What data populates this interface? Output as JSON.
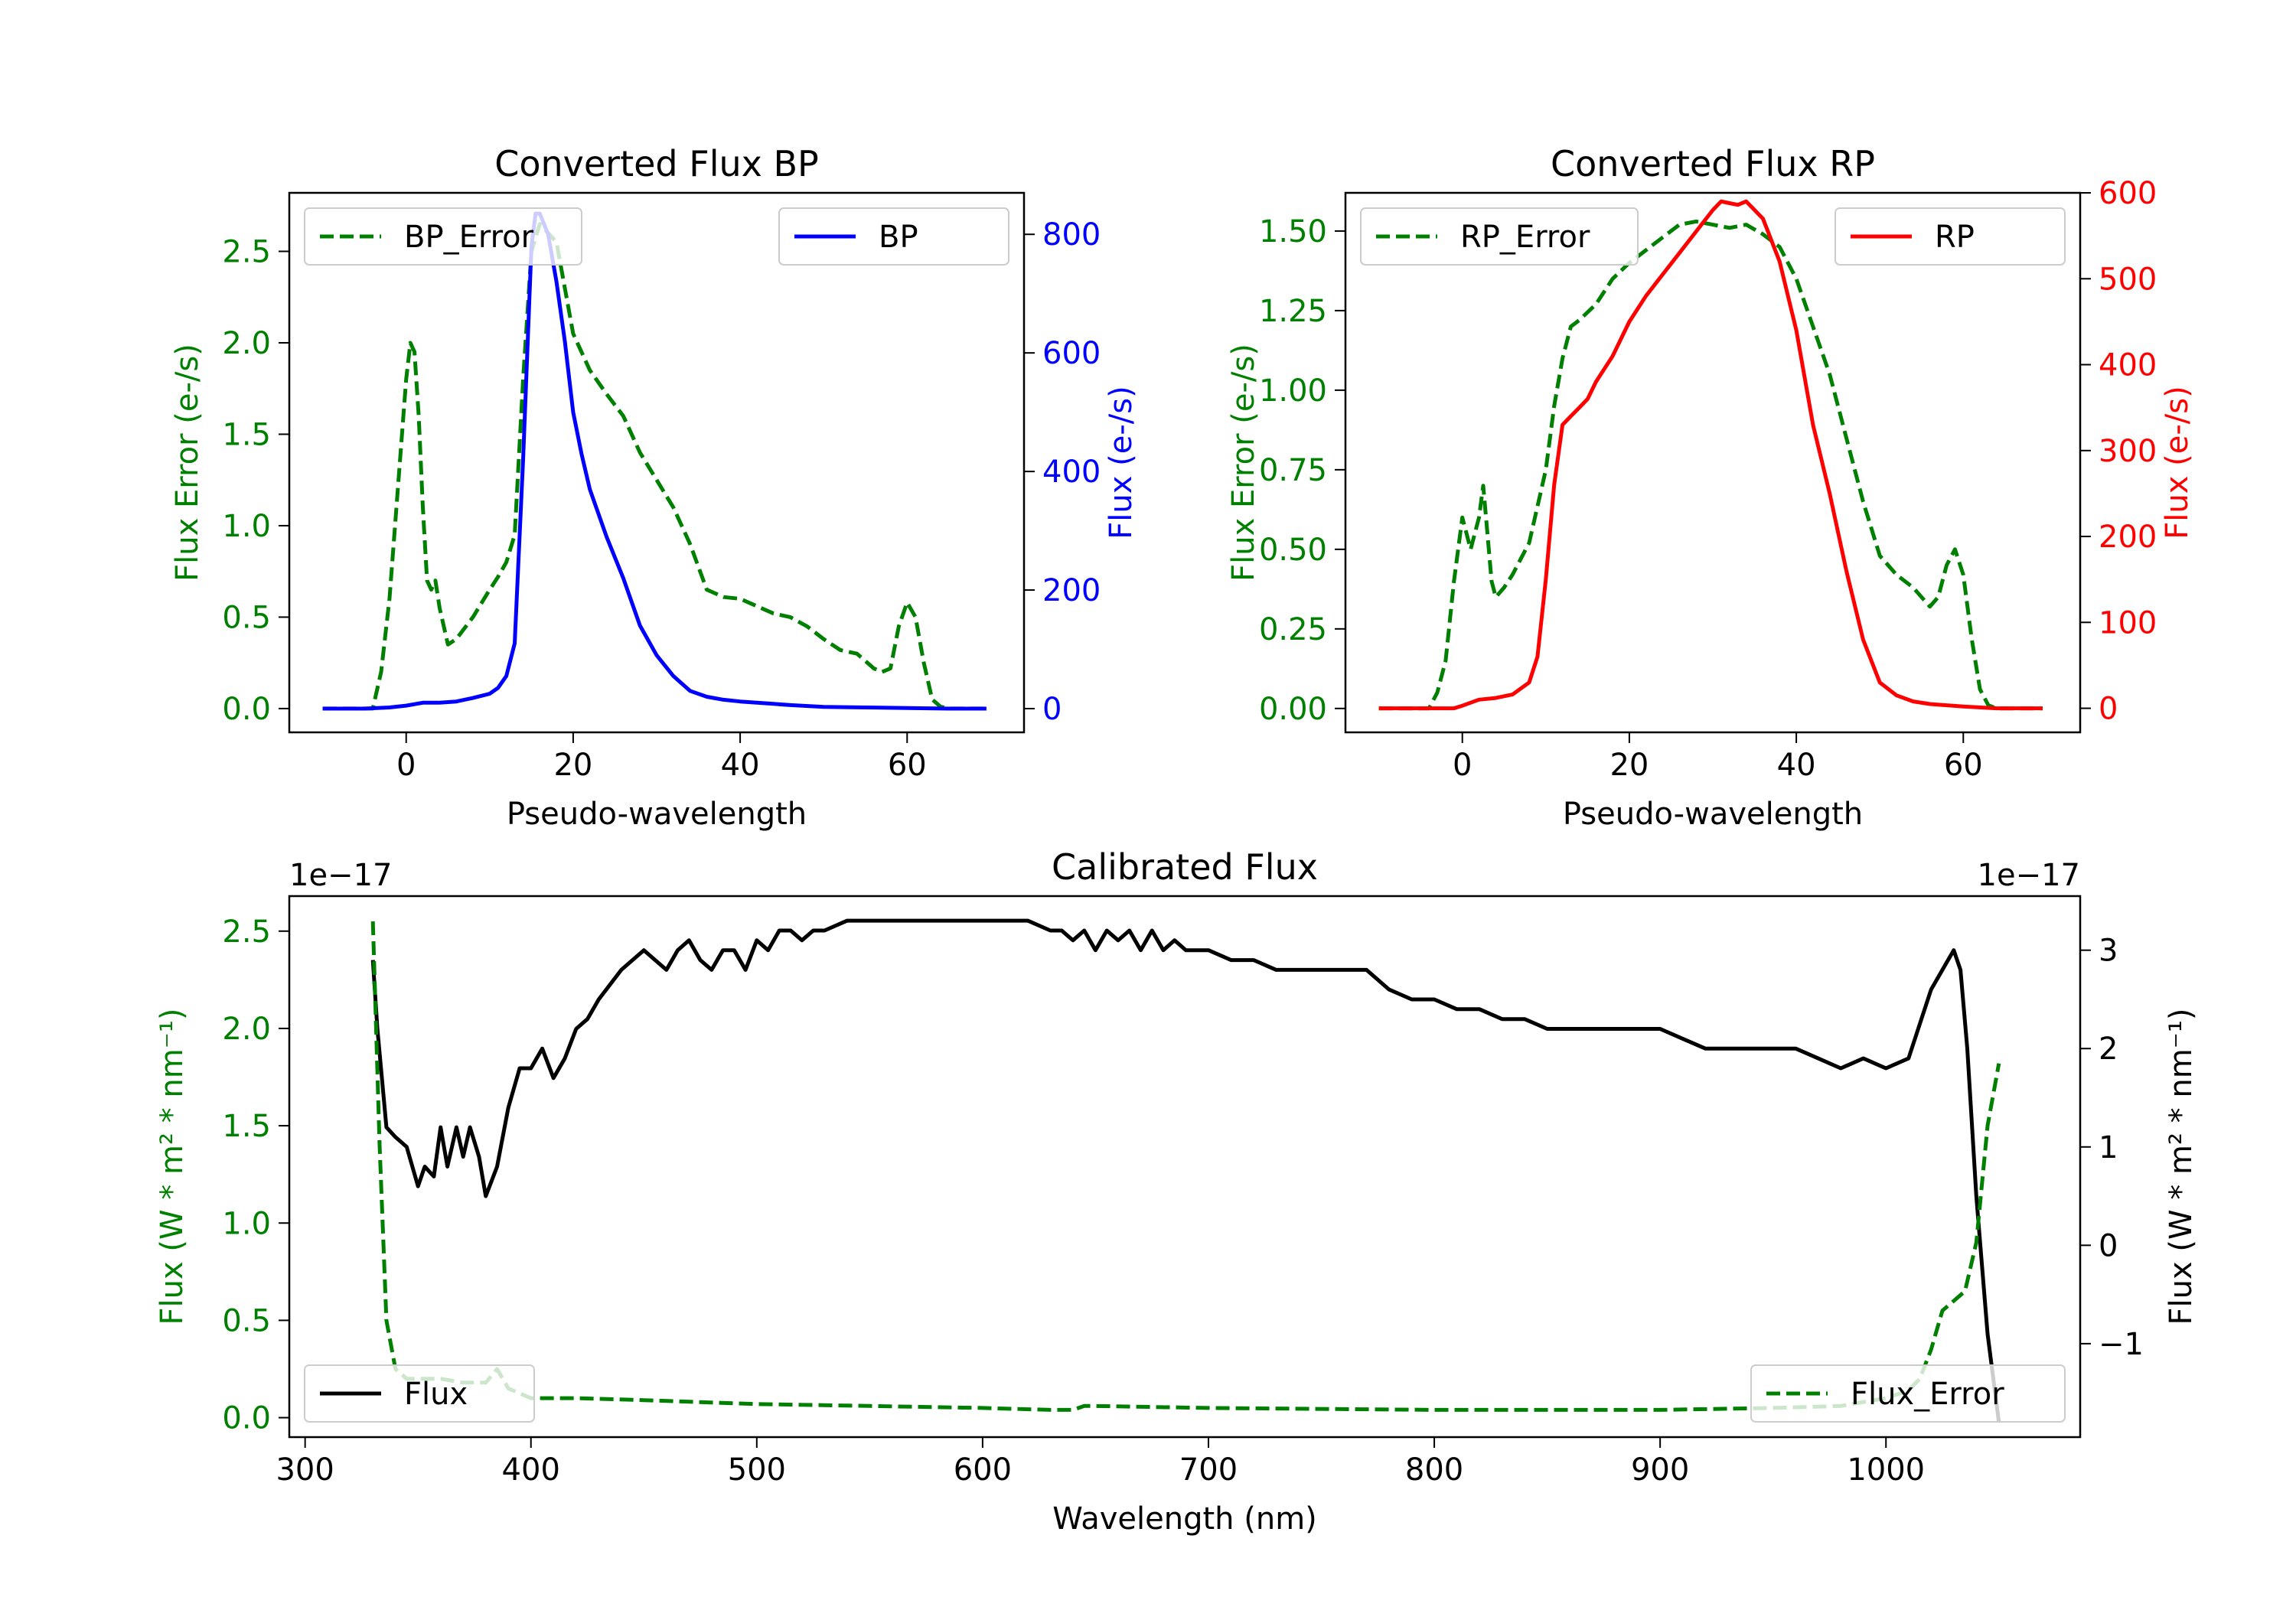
{
  "colors": {
    "bp_error": "#008000",
    "bp": "#0000ff",
    "rp_error": "#008000",
    "rp": "#ff0000",
    "flux": "#000000",
    "flux_error": "#008000",
    "axis": "#000000",
    "legend_border": "#cccccc"
  },
  "chart_data": [
    {
      "id": "bp",
      "type": "line",
      "title": "Converted Flux BP",
      "xlabel": "Pseudo-wavelength",
      "ylabel_left": "Flux Error (e-/s)",
      "ylabel_right": "Flux (e-/s)",
      "xlim": [
        -14,
        74
      ],
      "ylim_left": [
        -0.13,
        2.82
      ],
      "ylim_right": [
        -40,
        870
      ],
      "xticks": [
        0,
        20,
        40,
        60
      ],
      "yticks_left": [
        0.0,
        0.5,
        1.0,
        1.5,
        2.0,
        2.5
      ],
      "yticks_right": [
        0,
        200,
        400,
        600,
        800
      ],
      "xtick_labels": [
        "0",
        "20",
        "40",
        "60"
      ],
      "ytick_labels_left": [
        "0.0",
        "0.5",
        "1.0",
        "1.5",
        "2.0",
        "2.5"
      ],
      "ytick_labels_right": [
        "0",
        "200",
        "400",
        "600",
        "800"
      ],
      "legend_left": "BP_Error",
      "legend_right": "BP",
      "series": [
        {
          "name": "BP_Error",
          "axis": "left",
          "style": "dashed",
          "x": [
            -10,
            -4,
            -3,
            -2,
            -1,
            0,
            0.5,
            1,
            1.5,
            2,
            2.5,
            3,
            3.5,
            4,
            5,
            6,
            8,
            10,
            11,
            12,
            13,
            14,
            15,
            16,
            18,
            20,
            22,
            24,
            26,
            28,
            30,
            32,
            34,
            36,
            38,
            40,
            44,
            46,
            48,
            50,
            52,
            54,
            56,
            57,
            58,
            59,
            60,
            61,
            62,
            63,
            64,
            65,
            69.5
          ],
          "y": [
            0,
            0,
            0.2,
            0.6,
            1.2,
            1.8,
            2.0,
            1.95,
            1.6,
            1.1,
            0.7,
            0.65,
            0.7,
            0.55,
            0.35,
            0.38,
            0.5,
            0.65,
            0.72,
            0.8,
            0.95,
            1.8,
            2.5,
            2.65,
            2.55,
            2.05,
            1.85,
            1.72,
            1.6,
            1.4,
            1.25,
            1.1,
            0.9,
            0.65,
            0.61,
            0.6,
            0.52,
            0.5,
            0.45,
            0.38,
            0.32,
            0.3,
            0.22,
            0.2,
            0.22,
            0.45,
            0.58,
            0.5,
            0.25,
            0.05,
            0.01,
            0,
            0
          ]
        },
        {
          "name": "BP",
          "axis": "right",
          "style": "solid",
          "x": [
            -10,
            -5,
            -2,
            0,
            2,
            4,
            6,
            8,
            10,
            11,
            12,
            13,
            14,
            15,
            15.5,
            16,
            17,
            18,
            19,
            20,
            21,
            22,
            24,
            26,
            28,
            30,
            32,
            34,
            36,
            38,
            40,
            42,
            44,
            46,
            50,
            55,
            60,
            65,
            69.5
          ],
          "y": [
            0,
            0,
            2,
            5,
            10,
            10,
            12,
            18,
            25,
            35,
            55,
            110,
            420,
            780,
            835,
            835,
            800,
            720,
            620,
            500,
            430,
            370,
            290,
            220,
            140,
            90,
            55,
            30,
            20,
            15,
            12,
            10,
            8,
            6,
            3,
            2,
            1,
            0,
            0
          ]
        }
      ]
    },
    {
      "id": "rp",
      "type": "line",
      "title": "Converted Flux RP",
      "xlabel": "Pseudo-wavelength",
      "ylabel_left": "Flux Error (e-/s)",
      "ylabel_right": "Flux (e-/s)",
      "xlim": [
        -14,
        74
      ],
      "ylim_left": [
        -0.075,
        1.62
      ],
      "ylim_right": [
        -28,
        600
      ],
      "xticks": [
        0,
        20,
        40,
        60
      ],
      "yticks_left": [
        0.0,
        0.25,
        0.5,
        0.75,
        1.0,
        1.25,
        1.5
      ],
      "yticks_right": [
        0,
        100,
        200,
        300,
        400,
        500,
        600
      ],
      "xtick_labels": [
        "0",
        "20",
        "40",
        "60"
      ],
      "ytick_labels_left": [
        "0.00",
        "0.25",
        "0.50",
        "0.75",
        "1.00",
        "1.25",
        "1.50"
      ],
      "ytick_labels_right": [
        "0",
        "100",
        "200",
        "300",
        "400",
        "500",
        "600"
      ],
      "legend_left": "RP_Error",
      "legend_right": "RP",
      "series": [
        {
          "name": "RP_Error",
          "axis": "left",
          "style": "dashed",
          "x": [
            -10,
            -4,
            -3,
            -2,
            -1,
            0,
            1,
            2,
            2.5,
            3,
            3.5,
            4,
            5,
            6,
            8,
            10,
            11,
            12,
            13,
            14,
            16,
            18,
            20,
            22,
            24,
            26,
            28,
            30,
            32,
            34,
            36,
            38,
            40,
            42,
            44,
            46,
            48,
            50,
            52,
            54,
            56,
            57,
            58,
            59,
            60,
            61,
            62,
            63,
            64,
            69.5
          ],
          "y": [
            0,
            0,
            0.05,
            0.15,
            0.4,
            0.6,
            0.5,
            0.6,
            0.7,
            0.55,
            0.4,
            0.35,
            0.38,
            0.42,
            0.52,
            0.75,
            0.95,
            1.1,
            1.2,
            1.22,
            1.27,
            1.35,
            1.4,
            1.44,
            1.48,
            1.52,
            1.53,
            1.52,
            1.51,
            1.52,
            1.49,
            1.45,
            1.35,
            1.2,
            1.05,
            0.85,
            0.65,
            0.48,
            0.42,
            0.38,
            0.32,
            0.35,
            0.45,
            0.5,
            0.42,
            0.22,
            0.06,
            0.01,
            0,
            0
          ]
        },
        {
          "name": "RP",
          "axis": "right",
          "style": "solid",
          "x": [
            -10,
            -1,
            0,
            2,
            4,
            6,
            8,
            9,
            10,
            11,
            12,
            13,
            14,
            15,
            16,
            18,
            20,
            22,
            24,
            26,
            28,
            30,
            31,
            32,
            33,
            34,
            36,
            38,
            40,
            42,
            44,
            46,
            48,
            50,
            52,
            54,
            56,
            60,
            64,
            69.5
          ],
          "y": [
            0,
            0,
            3,
            10,
            12,
            16,
            30,
            60,
            150,
            260,
            330,
            340,
            350,
            360,
            380,
            410,
            450,
            480,
            505,
            530,
            555,
            580,
            590,
            588,
            586,
            590,
            570,
            520,
            440,
            330,
            250,
            160,
            80,
            30,
            15,
            8,
            5,
            2,
            0,
            0
          ]
        }
      ]
    },
    {
      "id": "calibrated",
      "type": "line",
      "title": "Calibrated Flux",
      "xlabel": "Wavelength (nm)",
      "ylabel_left": "Flux (W * m² * nm⁻¹)",
      "ylabel_right": "Flux (W * m² * nm⁻¹)",
      "offset_left": "1e−17",
      "offset_right": "1e−17",
      "xlim": [
        293,
        1086
      ],
      "ylim_left": [
        -0.1,
        2.68
      ],
      "ylim_right": [
        -1.95,
        3.55
      ],
      "xticks": [
        300,
        400,
        500,
        600,
        700,
        800,
        900,
        1000
      ],
      "yticks_left": [
        0.0,
        0.5,
        1.0,
        1.5,
        2.0,
        2.5
      ],
      "yticks_right": [
        -1,
        0,
        1,
        2,
        3
      ],
      "xtick_labels": [
        "300",
        "400",
        "500",
        "600",
        "700",
        "800",
        "900",
        "1000"
      ],
      "ytick_labels_left": [
        "0.0",
        "0.5",
        "1.0",
        "1.5",
        "2.0",
        "2.5"
      ],
      "ytick_labels_right": [
        "−1",
        "0",
        "1",
        "2",
        "3"
      ],
      "legend_left": "Flux",
      "legend_right": "Flux_Error",
      "series": [
        {
          "name": "Flux",
          "axis": "right",
          "style": "solid",
          "x": [
            330,
            332,
            336,
            340,
            345,
            350,
            353,
            357,
            360,
            363,
            367,
            370,
            373,
            377,
            380,
            385,
            390,
            395,
            400,
            405,
            410,
            415,
            420,
            425,
            430,
            440,
            450,
            455,
            460,
            465,
            470,
            475,
            480,
            485,
            490,
            495,
            500,
            505,
            510,
            515,
            520,
            525,
            530,
            540,
            550,
            560,
            570,
            580,
            590,
            600,
            610,
            620,
            630,
            635,
            640,
            645,
            650,
            655,
            660,
            665,
            670,
            675,
            680,
            685,
            690,
            700,
            710,
            720,
            730,
            740,
            750,
            760,
            770,
            780,
            790,
            800,
            810,
            820,
            830,
            840,
            850,
            860,
            870,
            880,
            890,
            900,
            910,
            920,
            930,
            940,
            950,
            960,
            970,
            980,
            990,
            1000,
            1010,
            1020,
            1025,
            1030,
            1033,
            1036,
            1040,
            1045,
            1050
          ],
          "y": [
            2.9,
            2.2,
            1.2,
            1.1,
            1.0,
            0.6,
            0.8,
            0.7,
            1.2,
            0.8,
            1.2,
            0.9,
            1.2,
            0.9,
            0.5,
            0.8,
            1.4,
            1.8,
            1.8,
            2.0,
            1.7,
            1.9,
            2.2,
            2.3,
            2.5,
            2.8,
            3.0,
            2.9,
            2.8,
            3.0,
            3.1,
            2.9,
            2.8,
            3.0,
            3.0,
            2.8,
            3.1,
            3.0,
            3.2,
            3.2,
            3.1,
            3.2,
            3.2,
            3.3,
            3.3,
            3.3,
            3.3,
            3.3,
            3.3,
            3.3,
            3.3,
            3.3,
            3.2,
            3.2,
            3.1,
            3.2,
            3.0,
            3.2,
            3.1,
            3.2,
            3.0,
            3.2,
            3.0,
            3.1,
            3.0,
            3.0,
            2.9,
            2.9,
            2.8,
            2.8,
            2.8,
            2.8,
            2.8,
            2.6,
            2.5,
            2.5,
            2.4,
            2.4,
            2.3,
            2.3,
            2.2,
            2.2,
            2.2,
            2.2,
            2.2,
            2.2,
            2.1,
            2.0,
            2.0,
            2.0,
            2.0,
            2.0,
            1.9,
            1.8,
            1.9,
            1.8,
            1.9,
            2.6,
            2.8,
            3.0,
            2.8,
            2.0,
            0.5,
            -0.9,
            -1.8
          ]
        },
        {
          "name": "Flux_Error",
          "axis": "left",
          "style": "dashed",
          "x": [
            330,
            333,
            336,
            340,
            345,
            350,
            360,
            370,
            380,
            385,
            390,
            400,
            420,
            450,
            500,
            550,
            600,
            630,
            640,
            645,
            650,
            700,
            800,
            900,
            950,
            980,
            1000,
            1010,
            1015,
            1020,
            1025,
            1030,
            1035,
            1040,
            1045,
            1050
          ],
          "y": [
            2.55,
            1.4,
            0.5,
            0.25,
            0.2,
            0.2,
            0.2,
            0.18,
            0.18,
            0.25,
            0.15,
            0.1,
            0.1,
            0.09,
            0.07,
            0.06,
            0.05,
            0.04,
            0.04,
            0.06,
            0.06,
            0.05,
            0.04,
            0.04,
            0.05,
            0.06,
            0.1,
            0.14,
            0.2,
            0.35,
            0.55,
            0.6,
            0.65,
            0.9,
            1.5,
            1.82
          ]
        }
      ]
    }
  ]
}
